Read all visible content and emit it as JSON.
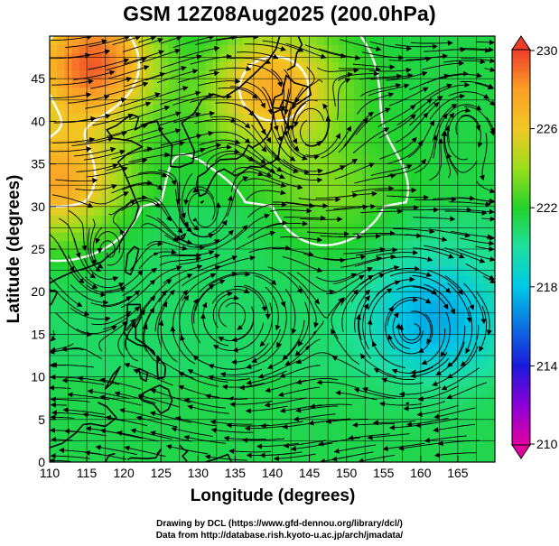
{
  "title": "GSM 12Z08Aug2025 (200.0hPa)",
  "chart_data": {
    "type": "heatmap",
    "xlabel": "Longitude (degrees)",
    "ylabel": "Latitude  (degrees)",
    "xlim": [
      110,
      170
    ],
    "ylim": [
      0,
      50
    ],
    "x_ticks": [
      "110",
      "115",
      "120",
      "125",
      "130",
      "135",
      "140",
      "145",
      "150",
      "155",
      "160",
      "165"
    ],
    "y_ticks": [
      "0",
      "5",
      "10",
      "15",
      "20",
      "25",
      "30",
      "35",
      "40",
      "45"
    ],
    "grid": true,
    "colorbar": {
      "min": 210,
      "max": 230,
      "labels": [
        "230",
        "226",
        "222",
        "218",
        "214",
        "210"
      ]
    },
    "temperature_centers": [
      {
        "lon": 116,
        "lat": 47,
        "value": 229
      },
      {
        "lon": 111,
        "lat": 33,
        "value": 227
      },
      {
        "lon": 140,
        "lat": 44,
        "value": 227
      },
      {
        "lon": 127,
        "lat": 48,
        "value": 220
      },
      {
        "lon": 162,
        "lat": 17,
        "value": 217
      },
      {
        "lon": 148,
        "lat": 31,
        "value": 223
      }
    ]
  },
  "credits": {
    "line1": "Drawing by DCL (https://www.gfd-dennou.org/library/dcl/)",
    "line2": "Data from http://database.rish.kyoto-u.ac.jp/arch/jmadata/"
  },
  "colors": {
    "cold_end": "#e0009f",
    "blue": "#1a1adc",
    "cyan": "#00c8e6",
    "green": "#22d22a",
    "yellow_green": "#9ade1c",
    "orange": "#fb9e26",
    "red": "#ee3c28",
    "contour": "#ffffff",
    "vector": "#000000"
  }
}
